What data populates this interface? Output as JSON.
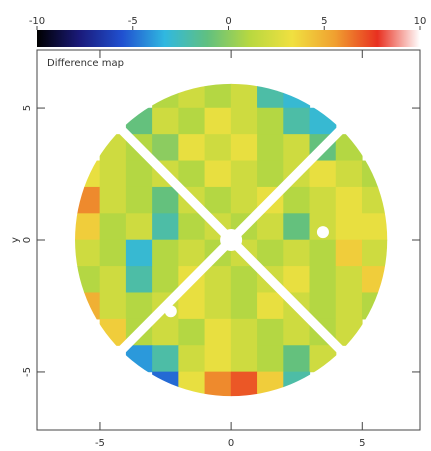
{
  "chart_data": {
    "type": "heatmap",
    "title": "Difference map",
    "y_label": "y",
    "x": [
      -5.5,
      -4.5,
      -3.5,
      -2.5,
      -1.5,
      -0.5,
      0.5,
      1.5,
      2.5,
      3.5,
      4.5,
      5.5
    ],
    "y": [
      5.5,
      4.5,
      3.5,
      2.5,
      1.5,
      0.5,
      -0.5,
      -1.5,
      -2.5,
      -3.5,
      -4.5,
      -5.5
    ],
    "z": [
      [
        null,
        null,
        null,
        1,
        2,
        1,
        2,
        -2,
        -3,
        null,
        null,
        null
      ],
      [
        null,
        null,
        -1,
        2,
        1,
        3,
        2,
        1,
        -2,
        -3,
        null,
        null
      ],
      [
        null,
        2,
        1,
        0,
        3,
        2,
        3,
        1,
        2,
        -1,
        1,
        null
      ],
      [
        3,
        2,
        1,
        2,
        1,
        3,
        2,
        1,
        2,
        3,
        2,
        1
      ],
      [
        6,
        2,
        1,
        -1,
        2,
        1,
        2,
        3,
        1,
        2,
        3,
        2
      ],
      [
        4,
        1,
        2,
        -2,
        1,
        2,
        1,
        2,
        -1,
        2,
        3,
        3
      ],
      [
        2,
        1,
        -3,
        1,
        2,
        1,
        2,
        1,
        2,
        1,
        4,
        2
      ],
      [
        1,
        2,
        -2,
        1,
        3,
        2,
        1,
        2,
        3,
        1,
        2,
        4
      ],
      [
        5,
        2,
        1,
        2,
        3,
        2,
        1,
        3,
        2,
        1,
        2,
        1
      ],
      [
        null,
        4,
        1,
        2,
        1,
        3,
        2,
        1,
        2,
        1,
        2,
        null
      ],
      [
        null,
        null,
        -4,
        -2,
        2,
        3,
        2,
        1,
        -1,
        2,
        null,
        null
      ],
      [
        null,
        null,
        null,
        -5,
        3,
        6,
        7,
        4,
        -2,
        null,
        null,
        null
      ]
    ],
    "clim": [
      -10,
      10
    ],
    "colorbar_ticks": [
      -10,
      -5,
      0,
      5,
      10
    ],
    "colorscale": [
      "#000000",
      "#1a1a7a",
      "#2050d0",
      "#30b8e0",
      "#60c080",
      "#b8d840",
      "#f0e040",
      "#f0a030",
      "#e83020",
      "#ffffff"
    ],
    "xlim": [
      -7.4,
      7.2
    ],
    "ylim": [
      -7.2,
      7.2
    ],
    "xticks": [
      -5,
      0,
      5
    ],
    "yticks": [
      -5,
      0,
      5
    ]
  }
}
